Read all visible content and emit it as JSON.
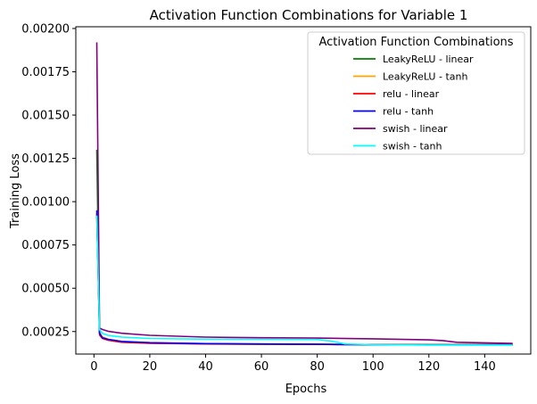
{
  "chart_data": {
    "type": "line",
    "title": "Activation Function Combinations for Variable 1",
    "xlabel": "Epochs",
    "ylabel": "Training Loss",
    "xlim": [
      -6.5,
      156.5
    ],
    "ylim": [
      0.00012,
      0.00201
    ],
    "xticks": [
      0,
      20,
      40,
      60,
      80,
      100,
      120,
      140
    ],
    "xtick_labels": [
      "0",
      "20",
      "40",
      "60",
      "80",
      "100",
      "120",
      "140"
    ],
    "yticks": [
      0.00025,
      0.0005,
      0.00075,
      0.001,
      0.00125,
      0.0015,
      0.00175,
      0.002
    ],
    "ytick_labels": [
      "0.00025",
      "0.00050",
      "0.00075",
      "0.00100",
      "0.00125",
      "0.00150",
      "0.00175",
      "0.00200"
    ],
    "grid": false,
    "legend": {
      "title": "Activation Function Combinations",
      "placement": "top-right"
    },
    "series": [
      {
        "name": "LeakyReLU - linear",
        "color": "#008000",
        "x": [
          1,
          2,
          3,
          5,
          10,
          20,
          40,
          60,
          80,
          90,
          100,
          120,
          150
        ],
        "y": [
          0.0013,
          0.00024,
          0.000215,
          0.000205,
          0.00019,
          0.000183,
          0.000179,
          0.000177,
          0.000176,
          0.000175,
          0.000175,
          0.000175,
          0.000176
        ]
      },
      {
        "name": "LeakyReLU - tanh",
        "color": "#ffa500",
        "x": [
          1,
          2,
          3,
          5,
          10,
          20,
          40,
          60,
          80,
          90,
          100,
          120,
          150
        ],
        "y": [
          0.00094,
          0.000245,
          0.00022,
          0.000207,
          0.000192,
          0.000185,
          0.00018,
          0.000178,
          0.000176,
          0.000175,
          0.000174,
          0.000174,
          0.000175
        ]
      },
      {
        "name": "relu - linear",
        "color": "#ff0000",
        "x": [
          1,
          2,
          3,
          5,
          10,
          20,
          40,
          60,
          80,
          90,
          100,
          120,
          150
        ],
        "y": [
          0.00093,
          0.00023,
          0.00021,
          0.0002,
          0.000188,
          0.000182,
          0.000178,
          0.000177,
          0.000176,
          0.000174,
          0.000174,
          0.000173,
          0.000174
        ]
      },
      {
        "name": "relu - tanh",
        "color": "#0000ff",
        "x": [
          1,
          2,
          3,
          5,
          10,
          20,
          40,
          60,
          80,
          90,
          100,
          120,
          150
        ],
        "y": [
          0.00095,
          0.00024,
          0.000215,
          0.000205,
          0.000193,
          0.000186,
          0.00018,
          0.000178,
          0.000177,
          0.000175,
          0.000174,
          0.000173,
          0.000174
        ]
      },
      {
        "name": "swish - linear",
        "color": "#800080",
        "x": [
          1,
          2,
          3,
          5,
          10,
          20,
          40,
          60,
          80,
          100,
          120,
          125,
          130,
          140,
          150
        ],
        "y": [
          0.00192,
          0.00027,
          0.000262,
          0.000252,
          0.00024,
          0.000228,
          0.000218,
          0.000214,
          0.000212,
          0.000208,
          0.000202,
          0.000198,
          0.000188,
          0.000185,
          0.000182
        ]
      },
      {
        "name": "swish - tanh",
        "color": "#00ffff",
        "x": [
          1,
          2,
          3,
          5,
          10,
          20,
          40,
          60,
          80,
          85,
          90,
          100,
          120,
          150
        ],
        "y": [
          0.00092,
          0.00026,
          0.00024,
          0.000228,
          0.000218,
          0.00021,
          0.000206,
          0.000205,
          0.000204,
          0.000195,
          0.000178,
          0.000174,
          0.000172,
          0.000172
        ]
      }
    ]
  }
}
